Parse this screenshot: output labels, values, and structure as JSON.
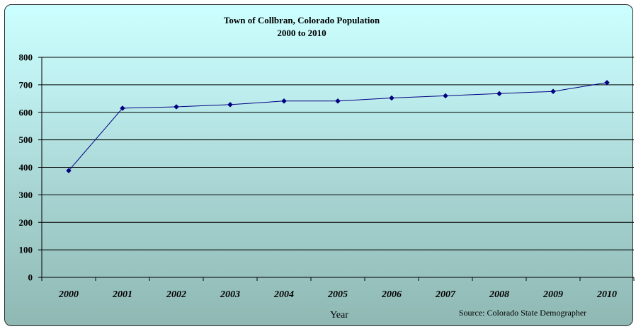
{
  "chart_data": {
    "type": "line",
    "title_line1": "Town of Collbran, Colorado Population",
    "title_line2": "2000 to 2010",
    "xlabel": "Year",
    "ylabel": "",
    "source": "Source: Colorado State Demographer",
    "categories": [
      "2000",
      "2001",
      "2002",
      "2003",
      "2004",
      "2005",
      "2006",
      "2007",
      "2008",
      "2009",
      "2010"
    ],
    "series": [
      {
        "values": [
          388,
          615,
          620,
          628,
          641,
          641,
          652,
          660,
          668,
          676,
          708
        ]
      }
    ],
    "ylim": [
      0,
      800
    ],
    "yticks": [
      "0",
      "100",
      "200",
      "300",
      "400",
      "500",
      "600",
      "700",
      "800"
    ],
    "grid": true,
    "line_color": "#000080",
    "marker": "diamond"
  }
}
